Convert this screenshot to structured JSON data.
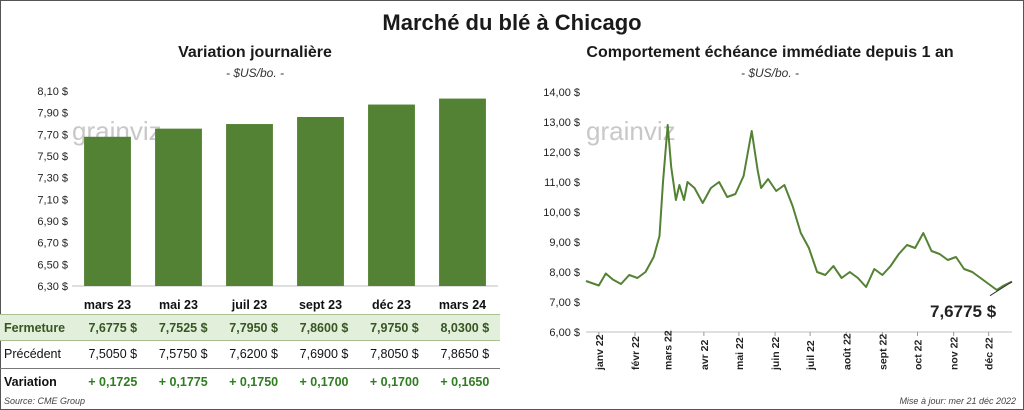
{
  "title": "Marché du blé à Chicago",
  "left_panel": {
    "title": "Variation  journalière",
    "subtitle": "- $US/bo. -",
    "watermark": "grainviz"
  },
  "right_panel": {
    "title": "Comportement  échéance immédiate depuis 1 an",
    "subtitle": "- $US/bo. -",
    "watermark": "grainviz",
    "last_value_label": "7,6775 $"
  },
  "table": {
    "row_labels": [
      "Fermeture",
      "Précédent",
      "Variation"
    ],
    "fermeture": [
      "7,6775  $",
      "7,7525  $",
      "7,7950  $",
      "7,8600  $",
      "7,9750  $",
      "8,0300  $"
    ],
    "precedent": [
      "7,5050  $",
      "7,5750  $",
      "7,6200  $",
      "7,6900  $",
      "7,8050  $",
      "7,8650  $"
    ],
    "variation": [
      "+ 0,1725",
      "+ 0,1775",
      "+ 0,1750",
      "+ 0,1700",
      "+ 0,1700",
      "+ 0,1650"
    ]
  },
  "footer": {
    "source": "Source: CME Group",
    "update": "Mise à jour: mer 21 déc 2022"
  },
  "colors": {
    "bar": "#548235",
    "line": "#548235",
    "row_highlight": "#e2efda",
    "variation_text": "#2e7d1f"
  },
  "chart_data": [
    {
      "type": "bar",
      "categories": [
        "mars 23",
        "mai 23",
        "juil 23",
        "sept 23",
        "déc 23",
        "mars 24"
      ],
      "values": [
        7.6775,
        7.7525,
        7.795,
        7.86,
        7.975,
        8.03
      ],
      "ylim": [
        6.3,
        8.1
      ],
      "yticks": [
        "6,30 $",
        "6,50 $",
        "6,70 $",
        "6,90 $",
        "7,10 $",
        "7,30 $",
        "7,50 $",
        "7,70 $",
        "7,90 $",
        "8,10 $"
      ],
      "ytick_values": [
        6.3,
        6.5,
        6.7,
        6.9,
        7.1,
        7.3,
        7.5,
        7.7,
        7.9,
        8.1
      ],
      "grid": false
    },
    {
      "type": "line",
      "x": [
        "2021-12-21",
        "2022-01-01",
        "2022-01-07",
        "2022-01-13",
        "2022-01-20",
        "2022-01-27",
        "2022-02-03",
        "2022-02-10",
        "2022-02-17",
        "2022-02-22",
        "2022-02-25",
        "2022-03-01",
        "2022-03-04",
        "2022-03-08",
        "2022-03-11",
        "2022-03-15",
        "2022-03-18",
        "2022-03-24",
        "2022-03-31",
        "2022-04-07",
        "2022-04-14",
        "2022-04-21",
        "2022-04-28",
        "2022-05-05",
        "2022-05-12",
        "2022-05-17",
        "2022-05-20",
        "2022-05-26",
        "2022-06-02",
        "2022-06-09",
        "2022-06-16",
        "2022-06-23",
        "2022-06-30",
        "2022-07-07",
        "2022-07-14",
        "2022-07-21",
        "2022-07-28",
        "2022-08-04",
        "2022-08-11",
        "2022-08-18",
        "2022-08-25",
        "2022-09-01",
        "2022-09-08",
        "2022-09-15",
        "2022-09-22",
        "2022-09-29",
        "2022-10-06",
        "2022-10-13",
        "2022-10-20",
        "2022-10-27",
        "2022-11-03",
        "2022-11-10",
        "2022-11-17",
        "2022-11-24",
        "2022-12-01",
        "2022-12-08",
        "2022-12-14",
        "2022-12-21"
      ],
      "y": [
        7.7,
        7.55,
        7.95,
        7.75,
        7.6,
        7.9,
        7.8,
        8.0,
        8.5,
        9.2,
        11.0,
        12.9,
        11.5,
        10.4,
        10.9,
        10.4,
        11.0,
        10.8,
        10.3,
        10.8,
        11.0,
        10.5,
        10.6,
        11.2,
        12.7,
        11.4,
        10.8,
        11.1,
        10.7,
        10.9,
        10.2,
        9.3,
        8.8,
        8.0,
        7.9,
        8.2,
        7.8,
        8.0,
        7.8,
        7.5,
        8.1,
        7.9,
        8.2,
        8.6,
        8.9,
        8.8,
        9.3,
        8.7,
        8.6,
        8.4,
        8.5,
        8.1,
        8.0,
        7.8,
        7.6,
        7.4,
        7.55,
        7.6775
      ],
      "ylim": [
        6.0,
        14.0
      ],
      "yticks": [
        "6,00 $",
        "7,00 $",
        "8,00 $",
        "9,00 $",
        "10,00 $",
        "11,00 $",
        "12,00 $",
        "13,00 $",
        "14,00 $"
      ],
      "ytick_values": [
        6,
        7,
        8,
        9,
        10,
        11,
        12,
        13,
        14
      ],
      "xticks": [
        "janv 22",
        "févr 22",
        "mars 22",
        "avr 22",
        "mai 22",
        "juin 22",
        "juil 22",
        "août 22",
        "sept 22",
        "oct 22",
        "nov 22",
        "déc 22"
      ],
      "xtick_dates": [
        "2022-01-01",
        "2022-02-01",
        "2022-03-01",
        "2022-04-01",
        "2022-05-01",
        "2022-06-01",
        "2022-07-01",
        "2022-08-01",
        "2022-09-01",
        "2022-10-01",
        "2022-11-01",
        "2022-12-01"
      ],
      "grid": false
    }
  ]
}
